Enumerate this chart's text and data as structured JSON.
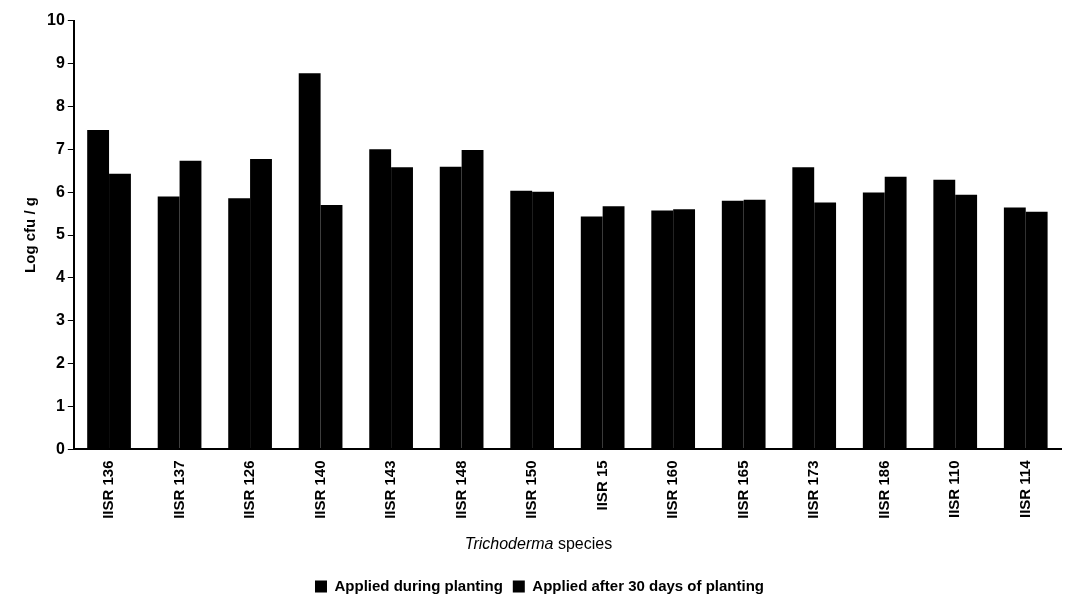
{
  "chart_data": {
    "type": "bar",
    "xlabel": "$^{}$Trichoderma species",
    "ylabel": "Log cfu / g",
    "categories": [
      "IISR 136",
      "IISR 137",
      "IISR 126",
      "IISR 140",
      "IISR 143",
      "IISR 148",
      "IISR 150",
      "IISR 15",
      "IISR 160",
      "IISR 165",
      "IISR 173",
      "IISR 186",
      "IISR 110",
      "IISR 114"
    ],
    "series": [
      {
        "name": "Applied during planting",
        "color": "#000000",
        "values": [
          7.45,
          5.9,
          5.86,
          8.77,
          7.0,
          6.59,
          6.03,
          5.43,
          5.57,
          5.8,
          6.58,
          5.99,
          6.29,
          5.64
        ]
      },
      {
        "name": "Applied after 30 days of planting",
        "color": "#000000",
        "values": [
          6.43,
          6.73,
          6.77,
          5.7,
          6.58,
          6.98,
          6.01,
          5.67,
          5.6,
          5.82,
          5.76,
          6.36,
          5.94,
          5.54
        ]
      }
    ],
    "ylim": [
      0,
      10
    ],
    "yticks": [
      0,
      1,
      2,
      3,
      4,
      5,
      6,
      7,
      8,
      9,
      10
    ],
    "grid": false,
    "legend": "bottom"
  }
}
